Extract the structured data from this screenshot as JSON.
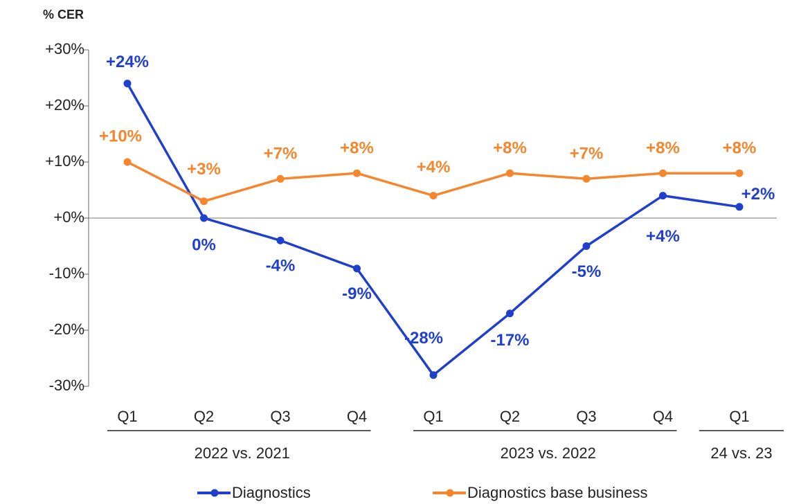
{
  "chart_data": {
    "type": "line",
    "y_axis_label": "% CER",
    "categories": [
      "Q1",
      "Q2",
      "Q3",
      "Q4",
      "Q1",
      "Q2",
      "Q3",
      "Q4",
      "Q1"
    ],
    "category_groups": [
      {
        "label": "2022 vs. 2021",
        "start": 0,
        "end": 3
      },
      {
        "label": "2023 vs. 2022",
        "start": 4,
        "end": 7
      },
      {
        "label": "24 vs. 23",
        "start": 8,
        "end": 8
      }
    ],
    "series": [
      {
        "name": "Diagnostics",
        "color": "#1f3fcc",
        "values": [
          24,
          0,
          -4,
          -9,
          -28,
          -17,
          -5,
          4,
          2
        ],
        "value_labels": [
          "+24%",
          "0%",
          "-4%",
          "-9%",
          "-28%",
          "-17%",
          "-5%",
          "+4%",
          "+2%"
        ]
      },
      {
        "name": "Diagnostics base business",
        "color": "#f5862d",
        "values": [
          10,
          3,
          7,
          8,
          4,
          8,
          7,
          8,
          8
        ],
        "value_labels": [
          "+10%",
          "+3%",
          "+7%",
          "+8%",
          "+4%",
          "+8%",
          "+7%",
          "+8%",
          "+8%"
        ]
      }
    ],
    "ylim": [
      -30,
      30
    ],
    "yticks": [
      {
        "value": 30,
        "label": "+30%"
      },
      {
        "value": 20,
        "label": "+20%"
      },
      {
        "value": 10,
        "label": "+10%"
      },
      {
        "value": 0,
        "label": "+0%"
      },
      {
        "value": -10,
        "label": "-10%"
      },
      {
        "value": -20,
        "label": "-20%"
      },
      {
        "value": -30,
        "label": "-30%"
      }
    ],
    "legend": "bottom"
  }
}
